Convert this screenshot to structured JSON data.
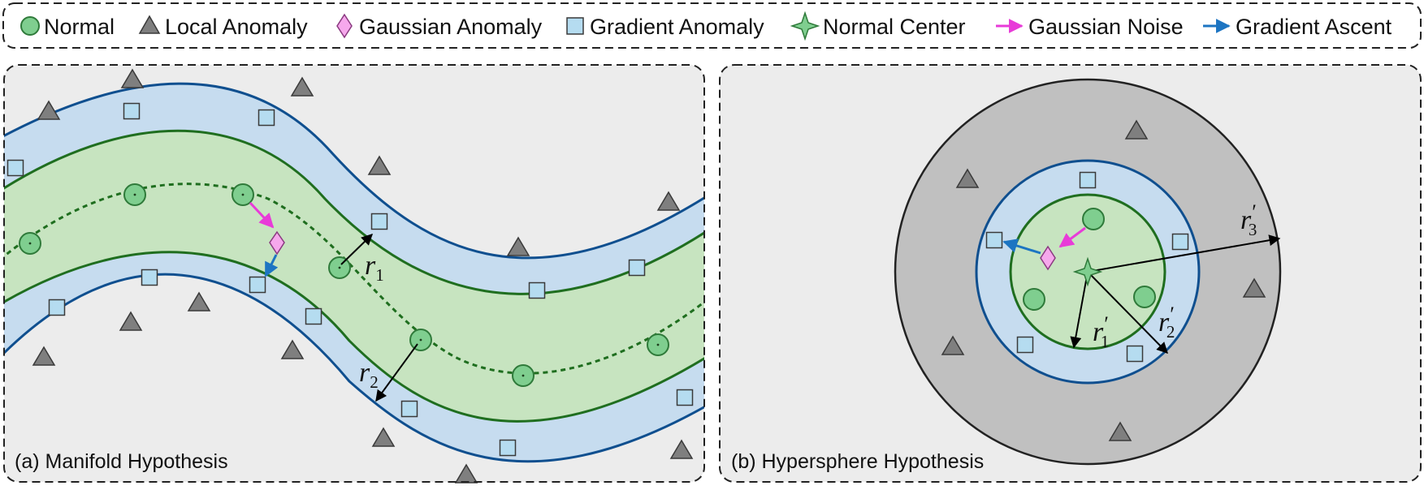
{
  "legend": {
    "items": [
      {
        "marker": "circle",
        "label": "Normal"
      },
      {
        "marker": "triangle",
        "label": "Local Anomaly"
      },
      {
        "marker": "diamond",
        "label": "Gaussian Anomaly"
      },
      {
        "marker": "square",
        "label": "Gradient Anomaly"
      },
      {
        "marker": "star",
        "label": "Normal Center"
      },
      {
        "marker": "arrow-magenta",
        "label": "Gaussian Noise"
      },
      {
        "marker": "arrow-blue",
        "label": "Gradient Ascent"
      }
    ]
  },
  "panel_a": {
    "caption": "(a) Manifold Hypothesis",
    "r1": {
      "base": "r",
      "sub": "1"
    },
    "r2": {
      "base": "r",
      "sub": "2"
    }
  },
  "panel_b": {
    "caption": "(b) Hypersphere Hypothesis",
    "r1": {
      "base": "r",
      "prime": "′",
      "sub": "1"
    },
    "r2": {
      "base": "r",
      "prime": "′",
      "sub": "2"
    },
    "r3": {
      "base": "r",
      "prime": "′",
      "sub": "3"
    }
  },
  "colors": {
    "normal_fill": "#7fce8f",
    "normal_stroke": "#2f7a3a",
    "green_band": "#c7e4c0",
    "green_line": "#1f6e1f",
    "blue_band": "#c6dcef",
    "blue_line": "#0f4f8f",
    "triangle": "#7f7f7f",
    "square_fill": "#b5dcf0",
    "diamond": "#f6a8ec",
    "magenta": "#e83bd8",
    "gradient_blue": "#1d75c2",
    "panel_bg": "#ececec",
    "outer_ring": "#c0c0c0"
  }
}
